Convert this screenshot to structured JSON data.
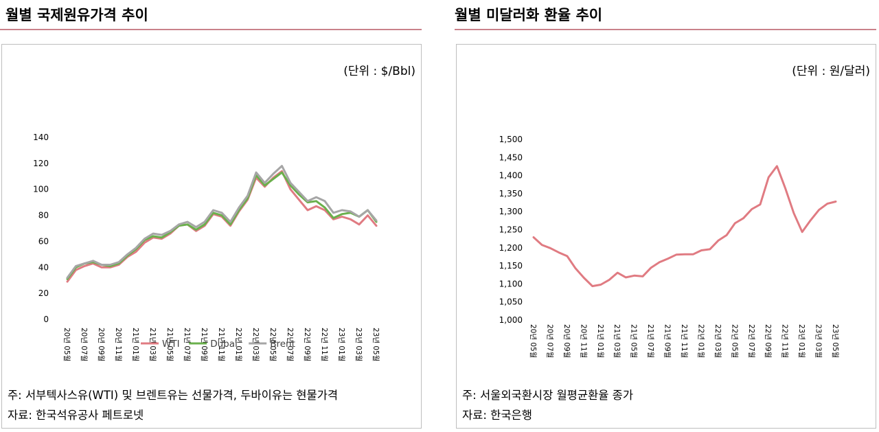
{
  "left": {
    "title": "월별 국제원유가격 추이",
    "unit": "(단위 : $/Bbl)",
    "note1": "주: 서부텍사스유(WTI) 및 브렌트유는 선물가격, 두바이유는 현물가격",
    "note2": "자료: 한국석유공사 페트로넷"
  },
  "right": {
    "title": "월별 미달러화 환율 추이",
    "unit": "(단위 : 원/달러)",
    "note1": "주: 서울외국환시장 월평균환율 종가",
    "note2": "자료: 한국은행"
  },
  "chart_data": [
    {
      "type": "line",
      "title": "월별 국제원유가격 추이",
      "ylim": [
        0,
        140
      ],
      "y_ticks": [
        "0",
        "20",
        "40",
        "60",
        "80",
        "100",
        "120",
        "140"
      ],
      "x_ticks": [
        "20년 05월",
        "20년 07월",
        "20년 09월",
        "20년 11월",
        "21년 01월",
        "21년 03월",
        "21년 05월",
        "21년 07월",
        "21년 09월",
        "21년 11월",
        "22년 01월",
        "22년 03월",
        "22년 05월",
        "22년 07월",
        "22년 09월",
        "22년 11월",
        "23년 01월",
        "23년 03월",
        "23년 05월"
      ],
      "x": [
        "20-05",
        "20-06",
        "20-07",
        "20-08",
        "20-09",
        "20-10",
        "20-11",
        "20-12",
        "21-01",
        "21-02",
        "21-03",
        "21-04",
        "21-05",
        "21-06",
        "21-07",
        "21-08",
        "21-09",
        "21-10",
        "21-11",
        "21-12",
        "22-01",
        "22-02",
        "22-03",
        "22-04",
        "22-05",
        "22-06",
        "22-07",
        "22-08",
        "22-09",
        "22-10",
        "22-11",
        "22-12",
        "23-01",
        "23-02",
        "23-03",
        "23-04",
        "23-05"
      ],
      "series": [
        {
          "name": "WTI",
          "color": "#e07b82",
          "values": [
            29,
            38,
            41,
            43,
            40,
            40,
            42,
            48,
            52,
            59,
            63,
            62,
            66,
            72,
            73,
            68,
            72,
            81,
            79,
            72,
            83,
            92,
            109,
            102,
            109,
            114,
            100,
            92,
            84,
            87,
            84,
            77,
            79,
            77,
            73,
            80,
            72
          ]
        },
        {
          "name": "Dubai",
          "color": "#6ab04c",
          "values": [
            31,
            40,
            43,
            44,
            42,
            41,
            43,
            49,
            54,
            61,
            64,
            63,
            67,
            72,
            73,
            69,
            73,
            82,
            80,
            73,
            84,
            93,
            111,
            103,
            108,
            113,
            103,
            96,
            90,
            91,
            86,
            78,
            81,
            82,
            79,
            84,
            75
          ]
        },
        {
          "name": "Brent",
          "color": "#a6a6a6",
          "values": [
            32,
            41,
            43,
            45,
            42,
            42,
            44,
            50,
            55,
            62,
            66,
            65,
            68,
            73,
            75,
            71,
            75,
            84,
            82,
            75,
            86,
            95,
            113,
            105,
            112,
            118,
            105,
            98,
            91,
            94,
            91,
            82,
            84,
            83,
            79,
            84,
            76
          ]
        }
      ]
    },
    {
      "type": "line",
      "title": "월별 미달러화 환율 추이",
      "ylim": [
        1000,
        1500
      ],
      "y_ticks": [
        "1,000",
        "1,050",
        "1,100",
        "1,150",
        "1,200",
        "1,250",
        "1,300",
        "1,350",
        "1,400",
        "1,450",
        "1,500"
      ],
      "x_ticks": [
        "20년 05월",
        "20년 07월",
        "20년 09월",
        "20년 11월",
        "21년 01월",
        "21년 03월",
        "21년 05월",
        "21년 07월",
        "21년 09월",
        "21년 11월",
        "22년 01월",
        "22년 03월",
        "22년 05월",
        "22년 07월",
        "22년 09월",
        "22년 11월",
        "23년 01월",
        "23년 03월",
        "23년 05월"
      ],
      "x": [
        "20-05",
        "20-06",
        "20-07",
        "20-08",
        "20-09",
        "20-10",
        "20-11",
        "20-12",
        "21-01",
        "21-02",
        "21-03",
        "21-04",
        "21-05",
        "21-06",
        "21-07",
        "21-08",
        "21-09",
        "21-10",
        "21-11",
        "21-12",
        "22-01",
        "22-02",
        "22-03",
        "22-04",
        "22-05",
        "22-06",
        "22-07",
        "22-08",
        "22-09",
        "22-10",
        "22-11",
        "22-12",
        "23-01",
        "23-02",
        "23-03",
        "23-04",
        "23-05"
      ],
      "series": [
        {
          "name": "원/달러",
          "color": "#e07b82",
          "values": [
            1229,
            1208,
            1199,
            1187,
            1177,
            1143,
            1117,
            1094,
            1098,
            1111,
            1131,
            1118,
            1123,
            1121,
            1145,
            1160,
            1170,
            1181,
            1182,
            1182,
            1193,
            1196,
            1220,
            1235,
            1268,
            1282,
            1307,
            1320,
            1395,
            1426,
            1364,
            1296,
            1244,
            1276,
            1305,
            1322,
            1328
          ]
        }
      ]
    }
  ]
}
